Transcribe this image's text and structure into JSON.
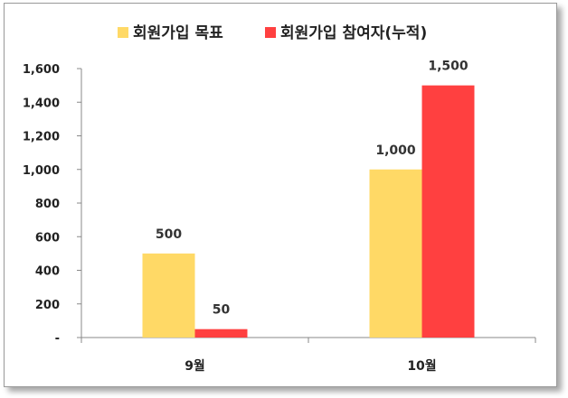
{
  "chart_data": {
    "type": "bar",
    "categories": [
      "9월",
      "10월"
    ],
    "series": [
      {
        "name": "회원가입 목표",
        "values": [
          500,
          1000
        ],
        "color": "#FFD966",
        "labels": [
          "500",
          "1,000"
        ]
      },
      {
        "name": "회원가입 참여자(누적)",
        "values": [
          50,
          1500
        ],
        "color": "#FF4040",
        "labels": [
          "50",
          "1,500"
        ]
      }
    ],
    "ylim": [
      0,
      1600
    ],
    "yticks": [
      0,
      200,
      400,
      600,
      800,
      1000,
      1200,
      1400,
      1600
    ],
    "ytick_labels": [
      "-",
      "200",
      "400",
      "600",
      "800",
      "1,000",
      "1,200",
      "1,400",
      "1,600"
    ],
    "legend_position": "top",
    "grid": false
  }
}
